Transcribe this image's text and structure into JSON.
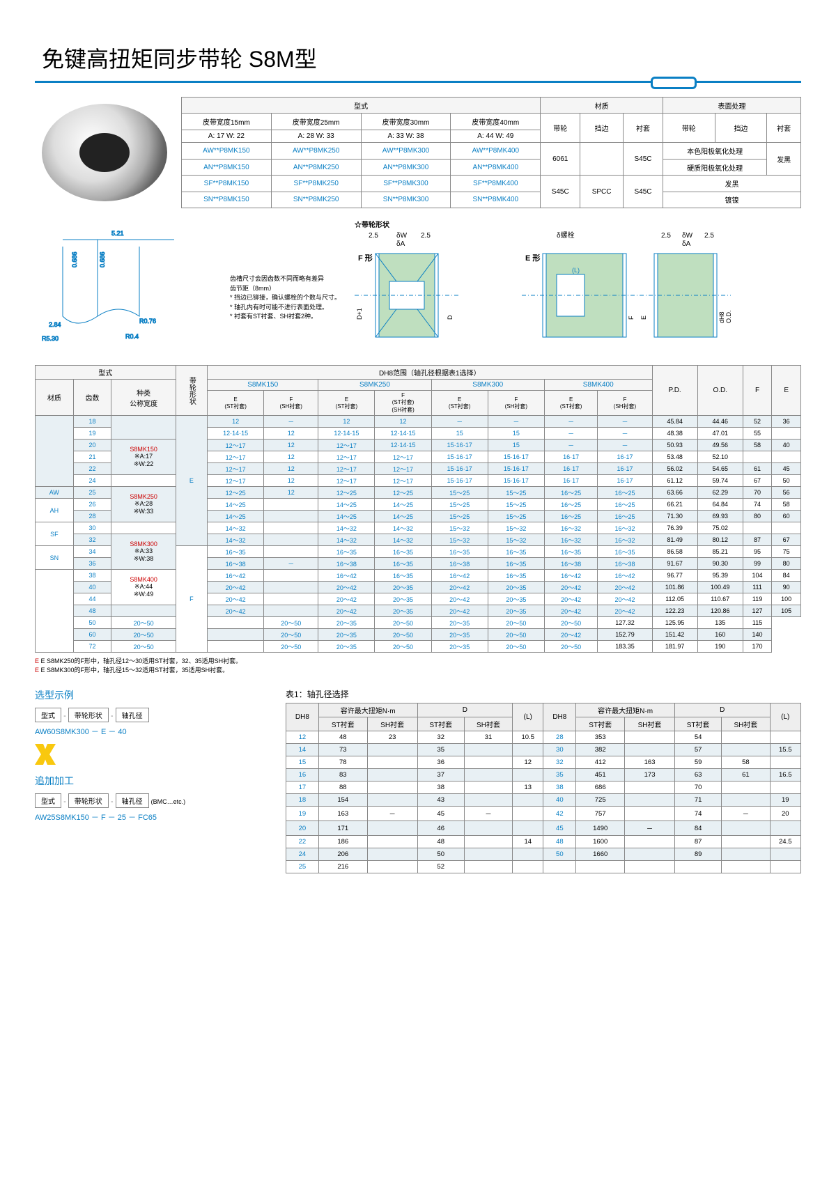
{
  "title": "免键高扭矩同步带轮 S8M型",
  "spec": {
    "hdr_type": "型式",
    "hdr_mat": "材质",
    "hdr_surf": "表面处理",
    "belt15": "皮带宽度15mm",
    "belt25": "皮带宽度25mm",
    "belt30": "皮带宽度30mm",
    "belt40": "皮带宽度40mm",
    "wheel": "带轮",
    "flange": "挡边",
    "sleeve": "衬套",
    "a17": "A: 17  W: 22",
    "a28": "A: 28  W: 33",
    "a33": "A: 33  W: 38",
    "a44": "A: 44  W: 49",
    "r1c1": "AW**P8MK150",
    "r1c2": "AW**P8MK250",
    "r1c3": "AW**P8MK300",
    "r1c4": "AW**P8MK400",
    "r2c1": "AN**P8MK150",
    "r2c2": "AN**P8MK250",
    "r2c3": "AN**P8MK300",
    "r2c4": "AN**P8MK400",
    "r3c1": "SF**P8MK150",
    "r3c2": "SF**P8MK250",
    "r3c3": "SF**P8MK300",
    "r3c4": "SF**P8MK400",
    "r4c1": "SN**P8MK150",
    "r4c2": "SN**P8MK250",
    "r4c3": "SN**P8MK300",
    "r4c4": "SN**P8MK400",
    "m6061": "6061",
    "ms45c": "S45C",
    "mspcc": "SPCC",
    "anod1": "本色阳极氧化处理",
    "anod2": "硬质阳极氧化处理",
    "black": "发黑",
    "nickel": "镀镍"
  },
  "notes": {
    "n1": "齿槽尺寸会因齿数不同而略有差异",
    "n2": "齿节距（8mm）",
    "n3": "* 挡边已铆接，确认螺栓的个数与尺寸。",
    "n4": "* 轴孔内有时可能不进行表面处理。",
    "n5": "* 衬套有ST衬套、SH衬套2种。"
  },
  "shape_lbl": {
    "star": "☆带轮形状",
    "f": "F 形",
    "e": "E 形",
    "bolt": "δ螺栓",
    "dw": "δW",
    "da": "δA"
  },
  "main": {
    "h_type": "型式",
    "h_beltshape": "带轮形状",
    "h_dh8": "DH8范围（轴孔径根据表1选择）",
    "h_mat": "材质",
    "h_teeth": "齿数",
    "h_kind": "种类\n公称宽度",
    "h_150": "S8MK150",
    "h_250": "S8MK250",
    "h_300": "S8MK300",
    "h_400": "S8MK400",
    "h_pd": "P.D.",
    "h_od": "O.D.",
    "h_f": "F",
    "h_e": "E",
    "h_est": "E\n(ST衬套)",
    "h_fsh": "F\n(SH衬套)",
    "h_est2": "E\n(ST衬套)",
    "h_fstsh": "F\n(ST衬套)\n(SH衬套)",
    "mats": [
      "AW",
      "AH",
      "SF",
      "SN"
    ],
    "kinds": [
      {
        "k": "S8MK150",
        "a": "※A:17",
        "w": "※W:22"
      },
      {
        "k": "S8MK250",
        "a": "※A:28",
        "w": "※W:33"
      },
      {
        "k": "S8MK300",
        "a": "※A:33",
        "w": "※W:38"
      },
      {
        "k": "S8MK400",
        "a": "※A:44",
        "w": "※W:49"
      }
    ],
    "shapeE": "E",
    "shapeF": "F",
    "rows": [
      {
        "t": "18",
        "c": [
          "12",
          "－",
          "12",
          "12",
          "－",
          "－",
          "－",
          "－"
        ],
        "pd": "45.84",
        "od": "44.46",
        "f": "52",
        "e": "36"
      },
      {
        "t": "19",
        "c": [
          "12·14·15",
          "12",
          "12·14·15",
          "12·14·15",
          "15",
          "15",
          "－",
          "－"
        ],
        "pd": "48.38",
        "od": "47.01",
        "f": "55",
        "e": ""
      },
      {
        "t": "20",
        "c": [
          "12～17",
          "12",
          "12～17",
          "12·14·15",
          "15·16·17",
          "15",
          "－",
          "－"
        ],
        "pd": "50.93",
        "od": "49.56",
        "f": "58",
        "e": "40"
      },
      {
        "t": "21",
        "c": [
          "12～17",
          "12",
          "12～17",
          "12～17",
          "15·16·17",
          "15·16·17",
          "16·17",
          "16·17"
        ],
        "pd": "53.48",
        "od": "52.10",
        "f": "",
        "e": ""
      },
      {
        "t": "22",
        "c": [
          "12～17",
          "12",
          "12～17",
          "12～17",
          "15·16·17",
          "15·16·17",
          "16·17",
          "16·17"
        ],
        "pd": "56.02",
        "od": "54.65",
        "f": "61",
        "e": "45"
      },
      {
        "t": "24",
        "c": [
          "12～17",
          "12",
          "12～17",
          "12～17",
          "15·16·17",
          "15·16·17",
          "16·17",
          "16·17"
        ],
        "pd": "61.12",
        "od": "59.74",
        "f": "67",
        "e": "50"
      },
      {
        "t": "25",
        "c": [
          "12～25",
          "12",
          "12～25",
          "12～25",
          "15～25",
          "15～25",
          "16～25",
          "16～25"
        ],
        "pd": "63.66",
        "od": "62.29",
        "f": "70",
        "e": "56"
      },
      {
        "t": "26",
        "c": [
          "14～25",
          "",
          "14～25",
          "14～25",
          "15～25",
          "15～25",
          "16～25",
          "16～25"
        ],
        "pd": "66.21",
        "od": "64.84",
        "f": "74",
        "e": "58"
      },
      {
        "t": "28",
        "c": [
          "14～25",
          "",
          "14～25",
          "14～25",
          "15～25",
          "15～25",
          "16～25",
          "16～25"
        ],
        "pd": "71.30",
        "od": "69.93",
        "f": "80",
        "e": "60"
      },
      {
        "t": "30",
        "c": [
          "14～32",
          "",
          "14～32",
          "14～32",
          "15～32",
          "15～32",
          "16～32",
          "16～32"
        ],
        "pd": "76.39",
        "od": "75.02",
        "f": "",
        "e": ""
      },
      {
        "t": "32",
        "c": [
          "14～32",
          "",
          "14～32",
          "14～32",
          "15～32",
          "15～32",
          "16～32",
          "16～32"
        ],
        "pd": "81.49",
        "od": "80.12",
        "f": "87",
        "e": "67"
      },
      {
        "t": "34",
        "c": [
          "16～35",
          "",
          "16～35",
          "16～35",
          "16～35",
          "16～35",
          "16～35",
          "16～35"
        ],
        "pd": "86.58",
        "od": "85.21",
        "f": "95",
        "e": "75"
      },
      {
        "t": "36",
        "c": [
          "16～38",
          "－",
          "16～38",
          "16～35",
          "16～38",
          "16～35",
          "16～38",
          "16～38"
        ],
        "pd": "91.67",
        "od": "90.30",
        "f": "99",
        "e": "80"
      },
      {
        "t": "38",
        "c": [
          "16～42",
          "",
          "16～42",
          "16～35",
          "16～42",
          "16～35",
          "16～42",
          "16～42"
        ],
        "pd": "96.77",
        "od": "95.39",
        "f": "104",
        "e": "84"
      },
      {
        "t": "40",
        "c": [
          "20～42",
          "",
          "20～42",
          "20～35",
          "20～42",
          "20～35",
          "20～42",
          "20～42"
        ],
        "pd": "101.86",
        "od": "100.49",
        "f": "111",
        "e": "90"
      },
      {
        "t": "44",
        "c": [
          "20～42",
          "",
          "20～42",
          "20～35",
          "20～42",
          "20～35",
          "20～42",
          "20～42"
        ],
        "pd": "112.05",
        "od": "110.67",
        "f": "119",
        "e": "100"
      },
      {
        "t": "48",
        "c": [
          "20～42",
          "",
          "20～42",
          "20～35",
          "20～42",
          "20～35",
          "20～42",
          "20～42"
        ],
        "pd": "122.23",
        "od": "120.86",
        "f": "127",
        "e": "105"
      },
      {
        "t": "50",
        "c": [
          "20～50",
          "",
          "20～50",
          "20～35",
          "20～50",
          "20～35",
          "20～50",
          "20～50"
        ],
        "pd": "127.32",
        "od": "125.95",
        "f": "135",
        "e": "115"
      },
      {
        "t": "60",
        "c": [
          "20～50",
          "",
          "20～50",
          "20～35",
          "20～50",
          "20～35",
          "20～50",
          "20～42"
        ],
        "pd": "152.79",
        "od": "151.42",
        "f": "160",
        "e": "140"
      },
      {
        "t": "72",
        "c": [
          "20～50",
          "",
          "20～50",
          "20～35",
          "20～50",
          "20～35",
          "20～50",
          "20～50"
        ],
        "pd": "183.35",
        "od": "181.97",
        "f": "190",
        "e": "170"
      }
    ]
  },
  "foot": {
    "l1": "E S8MK250的F形中，轴孔径12～30适用ST衬套，32、35适用SH衬套。",
    "l2": "E S8MK300的F形中，轴孔径15～32适用ST衬套，35适用SH衬套。"
  },
  "example": {
    "h1": "选型示例",
    "h2": "追加加工",
    "lbl_type": "型式",
    "lbl_shape": "带轮形状",
    "lbl_bore": "轴孔径",
    "lbl_bmc": "(BMC…etc.)",
    "ex1": "AW60S8MK300 －   E   －   40",
    "ex2": "AW25S8MK150 －    F    －    25   － FC65"
  },
  "bore": {
    "cap": "表1：轴孔径选择",
    "h_dh8": "DH8",
    "h_torque": "容许最大扭矩N·m",
    "h_d": "D",
    "h_l": "(L)",
    "h_st": "ST衬套",
    "h_sh": "SH衬套",
    "rows": [
      {
        "d": "12",
        "t1": "48",
        "t2": "23",
        "d1": "32",
        "d2": "31",
        "l": "10.5",
        "D": "28",
        "T1": "353",
        "T2": "",
        "D1": "54",
        "D2": "",
        "L": ""
      },
      {
        "d": "14",
        "t1": "73",
        "t2": "",
        "d1": "35",
        "d2": "",
        "l": "",
        "D": "30",
        "T1": "382",
        "T2": "",
        "D1": "57",
        "D2": "",
        "L": "15.5"
      },
      {
        "d": "15",
        "t1": "78",
        "t2": "",
        "d1": "36",
        "d2": "",
        "l": "12",
        "D": "32",
        "T1": "412",
        "T2": "163",
        "D1": "59",
        "D2": "58",
        "L": ""
      },
      {
        "d": "16",
        "t1": "83",
        "t2": "",
        "d1": "37",
        "d2": "",
        "l": "",
        "D": "35",
        "T1": "451",
        "T2": "173",
        "D1": "63",
        "D2": "61",
        "L": "16.5"
      },
      {
        "d": "17",
        "t1": "88",
        "t2": "",
        "d1": "38",
        "d2": "",
        "l": "13",
        "D": "38",
        "T1": "686",
        "T2": "",
        "D1": "70",
        "D2": "",
        "L": ""
      },
      {
        "d": "18",
        "t1": "154",
        "t2": "",
        "d1": "43",
        "d2": "",
        "l": "",
        "D": "40",
        "T1": "725",
        "T2": "",
        "D1": "71",
        "D2": "",
        "L": "19"
      },
      {
        "d": "19",
        "t1": "163",
        "t2": "－",
        "d1": "45",
        "d2": "－",
        "l": "",
        "D": "42",
        "T1": "757",
        "T2": "",
        "D1": "74",
        "D2": "－",
        "L": "20"
      },
      {
        "d": "20",
        "t1": "171",
        "t2": "",
        "d1": "46",
        "d2": "",
        "l": "",
        "D": "45",
        "T1": "1490",
        "T2": "－",
        "D1": "84",
        "D2": "",
        "L": ""
      },
      {
        "d": "22",
        "t1": "186",
        "t2": "",
        "d1": "48",
        "d2": "",
        "l": "14",
        "D": "48",
        "T1": "1600",
        "T2": "",
        "D1": "87",
        "D2": "",
        "L": "24.5"
      },
      {
        "d": "24",
        "t1": "206",
        "t2": "",
        "d1": "50",
        "d2": "",
        "l": "",
        "D": "50",
        "T1": "1660",
        "T2": "",
        "D1": "89",
        "D2": "",
        "L": ""
      },
      {
        "d": "25",
        "t1": "216",
        "t2": "",
        "d1": "52",
        "d2": "",
        "l": "",
        "D": "",
        "T1": "",
        "T2": "",
        "D1": "",
        "D2": "",
        "L": ""
      }
    ]
  }
}
